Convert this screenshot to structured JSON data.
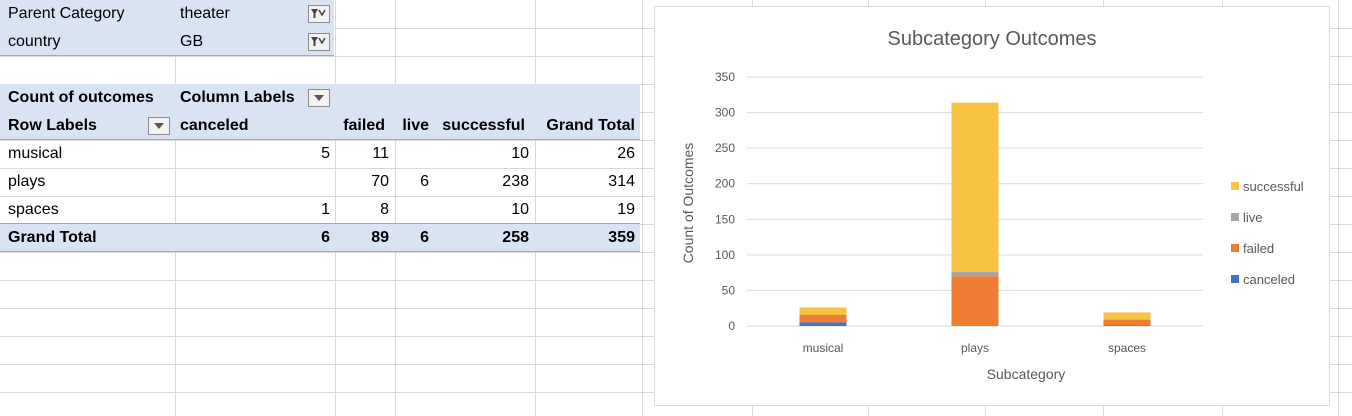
{
  "filters": [
    {
      "label": "Parent Category",
      "value": "theater"
    },
    {
      "label": "country",
      "value": "GB"
    }
  ],
  "pivot": {
    "corner_label": "Count of outcomes",
    "column_labels_label": "Column Labels",
    "row_labels_label": "Row Labels",
    "columns": [
      "canceled",
      "failed",
      "live",
      "successful",
      "Grand Total"
    ],
    "rows": [
      {
        "label": "musical",
        "values": [
          "5",
          "11",
          "",
          "10",
          "26"
        ]
      },
      {
        "label": "plays",
        "values": [
          "",
          "70",
          "6",
          "238",
          "314"
        ]
      },
      {
        "label": "spaces",
        "values": [
          "1",
          "8",
          "",
          "10",
          "19"
        ]
      }
    ],
    "grand_total": {
      "label": "Grand Total",
      "values": [
        "6",
        "89",
        "6",
        "258",
        "359"
      ]
    }
  },
  "chart_data": {
    "type": "bar",
    "stacked": true,
    "title": "Subcategory Outcomes",
    "xlabel": "Subcategory",
    "ylabel": "Count of Outcomes",
    "categories": [
      "musical",
      "plays",
      "spaces"
    ],
    "ylim": [
      0,
      350
    ],
    "yticks": [
      0,
      50,
      100,
      150,
      200,
      250,
      300,
      350
    ],
    "grid": true,
    "legend_position": "right",
    "series": [
      {
        "name": "canceled",
        "values": [
          5,
          0,
          1
        ],
        "color": "#4472c4"
      },
      {
        "name": "failed",
        "values": [
          11,
          70,
          8
        ],
        "color": "#ed7d31"
      },
      {
        "name": "live",
        "values": [
          0,
          6,
          0
        ],
        "color": "#a5a5a5"
      },
      {
        "name": "successful",
        "values": [
          10,
          238,
          10
        ],
        "color": "#f6c342"
      }
    ]
  }
}
